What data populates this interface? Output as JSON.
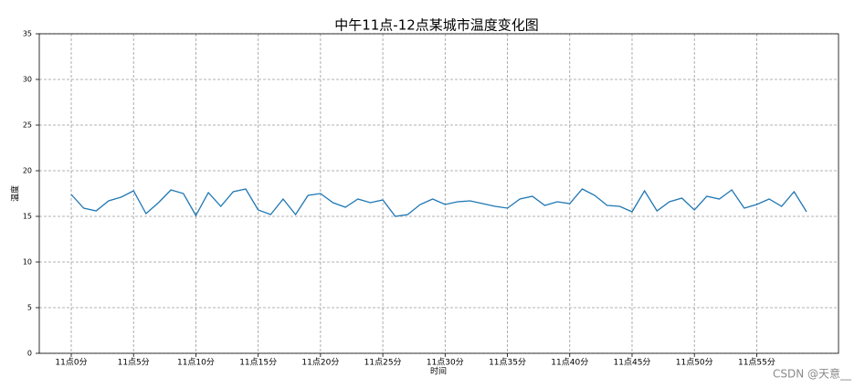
{
  "chart_data": {
    "type": "line",
    "title": "中午11点-12点某城市温度变化图",
    "x_label": "时间",
    "y_label": "温度",
    "watermark": "CSDN @天意__",
    "categories": [
      "11点0分",
      null,
      null,
      null,
      null,
      "11点5分",
      null,
      null,
      null,
      null,
      "11点10分",
      null,
      null,
      null,
      null,
      "11点15分",
      null,
      null,
      null,
      null,
      "11点20分",
      null,
      null,
      null,
      null,
      "11点25分",
      null,
      null,
      null,
      null,
      "11点30分",
      null,
      null,
      null,
      null,
      "11点35分",
      null,
      null,
      null,
      null,
      "11点40分",
      null,
      null,
      null,
      null,
      "11点45分",
      null,
      null,
      null,
      null,
      "11点50分",
      null,
      null,
      null,
      null,
      "11点55分",
      null,
      null,
      null,
      null
    ],
    "series": [
      {
        "name": "温度",
        "color": "#1f77b4",
        "values": [
          17.4,
          15.9,
          15.6,
          16.7,
          17.1,
          17.8,
          15.3,
          16.5,
          17.9,
          17.5,
          15.1,
          17.6,
          16.1,
          17.7,
          18.0,
          15.7,
          15.2,
          16.9,
          15.2,
          17.3,
          17.5,
          16.5,
          16.0,
          16.9,
          16.5,
          16.8,
          15.0,
          15.2,
          16.3,
          16.9,
          16.3,
          16.6,
          16.7,
          16.4,
          16.1,
          15.9,
          16.9,
          17.2,
          16.2,
          16.6,
          16.4,
          18.0,
          17.3,
          16.2,
          16.1,
          15.5,
          17.8,
          15.6,
          16.6,
          17.0,
          15.7,
          17.2,
          16.9,
          17.9,
          15.9,
          16.3,
          16.9,
          16.1,
          17.7,
          15.5
        ]
      }
    ],
    "ylim": [
      0,
      35
    ],
    "yticks": [
      0,
      5,
      10,
      15,
      20,
      25,
      30,
      35
    ],
    "grid": true
  }
}
